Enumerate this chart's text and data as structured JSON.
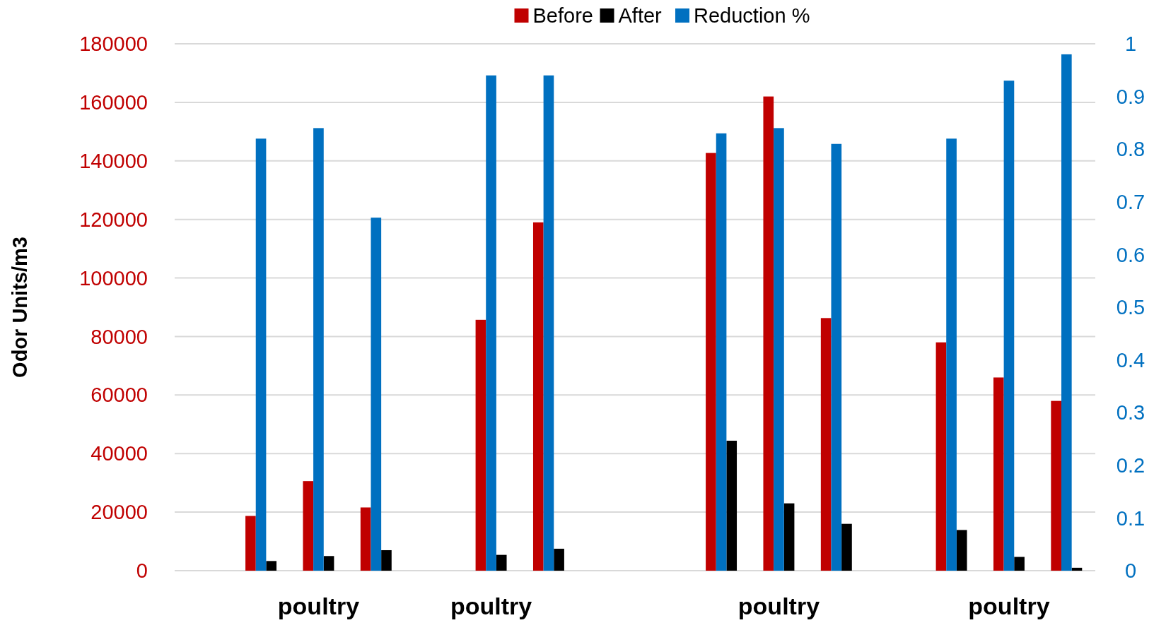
{
  "chart_data": {
    "type": "bar",
    "ylabel": "Odor Units/m3",
    "categories": [
      null,
      null,
      "poultry",
      null,
      null,
      "poultry",
      null,
      null,
      null,
      null,
      "poultry",
      null,
      null,
      null,
      "poultry",
      null
    ],
    "series": [
      {
        "name": "Before",
        "color": "#c00000",
        "values": [
          null,
          18700,
          30600,
          21600,
          null,
          85700,
          119000,
          null,
          null,
          142700,
          162000,
          86300,
          null,
          78000,
          66000,
          58000
        ]
      },
      {
        "name": "After",
        "color": "#000000",
        "values": [
          null,
          3300,
          5000,
          7000,
          null,
          5400,
          7500,
          null,
          null,
          44400,
          23000,
          16000,
          null,
          13900,
          4700,
          1000
        ]
      },
      {
        "name": "Reduction %",
        "color": "#0070c0",
        "axis": "y2",
        "values": [
          null,
          0.82,
          0.84,
          0.67,
          null,
          0.94,
          0.94,
          null,
          null,
          0.83,
          0.84,
          0.81,
          null,
          0.82,
          0.93,
          0.98
        ]
      }
    ],
    "ylim": [
      0,
      180000
    ],
    "yticks": [
      0,
      20000,
      40000,
      60000,
      80000,
      100000,
      120000,
      140000,
      160000,
      180000
    ],
    "y2lim": [
      0,
      1
    ],
    "y2ticks": [
      0,
      0.1,
      0.2,
      0.3,
      0.4,
      0.5,
      0.6,
      0.7,
      0.8,
      0.9,
      1
    ],
    "grid": "y",
    "legend": "top"
  }
}
